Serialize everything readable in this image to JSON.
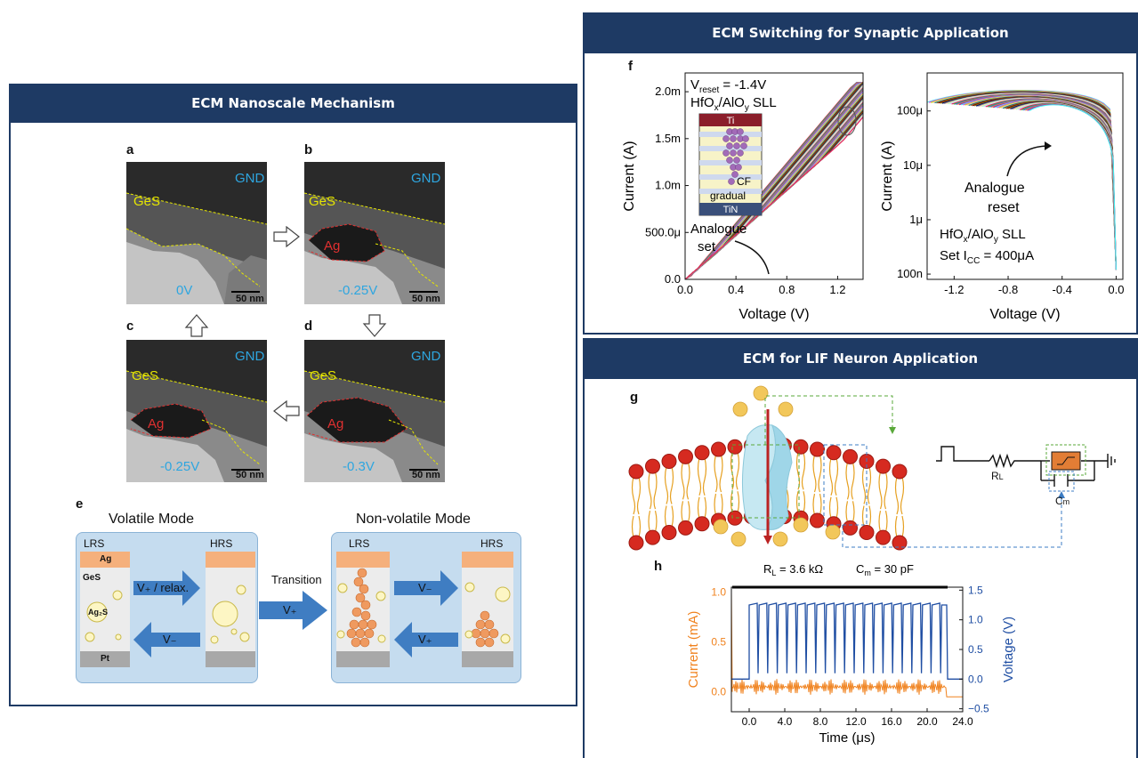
{
  "left_panel": {
    "title": "ECM Nanoscale Mechanism",
    "tem_images": [
      {
        "letter": "a",
        "top": "GND",
        "layer": "GeS",
        "metal": "",
        "voltage": "0V",
        "scale": "50 nm"
      },
      {
        "letter": "b",
        "top": "GND",
        "layer": "GeS",
        "metal": "Ag",
        "voltage": "-0.25V",
        "scale": "50 nm"
      },
      {
        "letter": "c",
        "top": "GND",
        "layer": "GeS",
        "metal": "Ag",
        "voltage": "-0.25V",
        "scale": "50 nm"
      },
      {
        "letter": "d",
        "top": "GND",
        "layer": "GeS",
        "metal": "Ag",
        "voltage": "-0.3V",
        "scale": "50 nm"
      }
    ],
    "panel_e": {
      "letter": "e",
      "volatile_title": "Volatile Mode",
      "nonvolatile_title": "Non-volatile Mode",
      "lrs": "LRS",
      "hrs": "HRS",
      "ag": "Ag",
      "ges": "GeS",
      "ag2s": "Ag₂S",
      "pt": "Pt",
      "arrow_vplus_relax": "V₊ / relax.",
      "arrow_vminus": "V₋",
      "transition": "Transition",
      "arrow_vplus": "V₊",
      "nv_arrow_vminus": "V₋",
      "nv_arrow_vplus": "V₊"
    }
  },
  "top_right_panel": {
    "title": "ECM Switching for Synaptic Application",
    "letter": "f",
    "chart_data": [
      {
        "type": "line",
        "xlabel": "Voltage (V)",
        "ylabel": "Current (A)",
        "x_ticks": [
          "0.0",
          "0.4",
          "0.8",
          "1.2"
        ],
        "y_ticks": [
          "0.0",
          "500.0μ",
          "1.0m",
          "1.5m",
          "2.0m"
        ],
        "xlim": [
          0,
          1.4
        ],
        "ylim": [
          0,
          0.0022
        ],
        "annotations": [
          "V",
          "reset",
          " = -1.4V",
          "HfO",
          "x",
          "/AlO",
          "y",
          " SLL",
          "Analogue",
          "set",
          "Ti",
          "TiN",
          "CF",
          "gradual"
        ]
      },
      {
        "type": "line",
        "xlabel": "Voltage (V)",
        "ylabel": "Current (A)",
        "x_ticks": [
          "-1.2",
          "-0.8",
          "-0.4",
          "0.0"
        ],
        "y_ticks": [
          "100n",
          "1μ",
          "10μ",
          "100μ"
        ],
        "xlim": [
          -1.4,
          0.05
        ],
        "y_scale": "log",
        "annotations": [
          "Analogue",
          "reset",
          "HfO",
          "x",
          "/AlO",
          "y",
          " SLL",
          "Set I",
          "CC",
          " = 400μA"
        ]
      }
    ]
  },
  "bottom_right_panel": {
    "title": "ECM for LIF Neuron Application",
    "letter_g": "g",
    "rl": "R",
    "rl_sub": "L",
    "cm": "C",
    "cm_sub": "m",
    "letter_h": "h",
    "chart_data": {
      "type": "line",
      "title_left": "R",
      "title_left_sub": "L",
      "title_left_value": " = 3.6 kΩ",
      "title_right": "C",
      "title_right_sub": "m",
      "title_right_value": " = 30 pF",
      "xlabel": "Time (μs)",
      "ylabel_left": "Current (mA)",
      "ylabel_right": "Voltage (V)",
      "x_ticks": [
        "0.0",
        "4.0",
        "8.0",
        "12.0",
        "16.0",
        "20.0",
        "24.0"
      ],
      "y_ticks_left": [
        "0.0",
        "0.5",
        "1.0"
      ],
      "y_ticks_right": [
        "−0.5",
        "0.0",
        "0.5",
        "1.0",
        "1.5"
      ],
      "xlim": [
        -2,
        24
      ],
      "series": [
        {
          "name": "",
          "color": "#f0821e"
        },
        {
          "name": "",
          "color": "#1f4ea3"
        }
      ]
    }
  }
}
